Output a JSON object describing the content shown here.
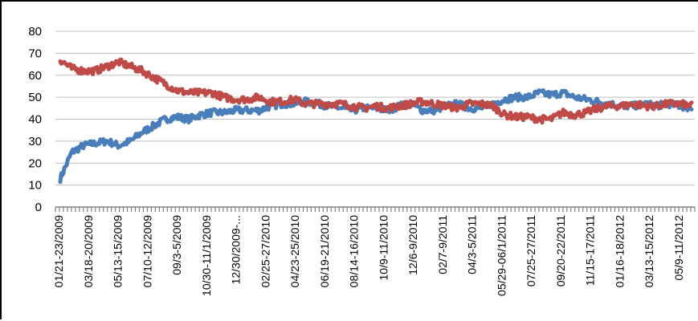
{
  "chart_data": {
    "type": "line",
    "title": "",
    "xlabel": "",
    "ylabel": "",
    "ylim": [
      0,
      80
    ],
    "yticks": [
      0,
      10,
      20,
      30,
      40,
      50,
      60,
      70,
      80
    ],
    "grid": true,
    "legend": "none",
    "x_tick_labels": [
      "01/21-23/2009",
      "03/18-20/2009",
      "05/13-15/2009",
      "07/10-12/2009",
      "09/3-5/2009",
      "10/30-11/1/2009",
      "12/30/2009-...",
      "02/25-27/2010",
      "04/23-25/2010",
      "06/19-21/2010",
      "08/14-16/2010",
      "10/9-11/2010",
      "12/6-9/2010",
      "02/7-9/2011",
      "04/3-5/2011",
      "05/29-06/1/2011",
      "07/25-27/2011",
      "09/20-22/2011",
      "11/15-17/2011",
      "01/16-18/2012",
      "03/13-15/2012",
      "05/9-11/2012"
    ],
    "series": [
      {
        "color": "#4a7ebb",
        "values": [
          13,
          25,
          28,
          29,
          30,
          28,
          30,
          34,
          37,
          40,
          41,
          40,
          42,
          43,
          43,
          44,
          44,
          44,
          46,
          47,
          47,
          48,
          47,
          46,
          45,
          44,
          45,
          45,
          44,
          46,
          47,
          44,
          44,
          46,
          47,
          45,
          45,
          47,
          49,
          50,
          50,
          52,
          51,
          52,
          50,
          49,
          48,
          47,
          46,
          46,
          47,
          46,
          47,
          46,
          45
        ]
      },
      {
        "color": "#be4b48",
        "values": [
          67,
          63,
          62,
          62,
          64,
          66,
          64,
          62,
          59,
          56,
          53,
          52,
          52,
          52,
          50,
          49,
          49,
          50,
          48,
          48,
          49,
          47,
          47,
          47,
          47,
          46,
          45,
          46,
          45,
          46,
          47,
          48,
          47,
          46,
          45,
          47,
          47,
          46,
          42,
          41,
          41,
          40,
          40,
          43,
          42,
          43,
          45,
          46,
          46,
          47,
          46,
          46,
          47,
          47,
          46
        ]
      }
    ]
  }
}
